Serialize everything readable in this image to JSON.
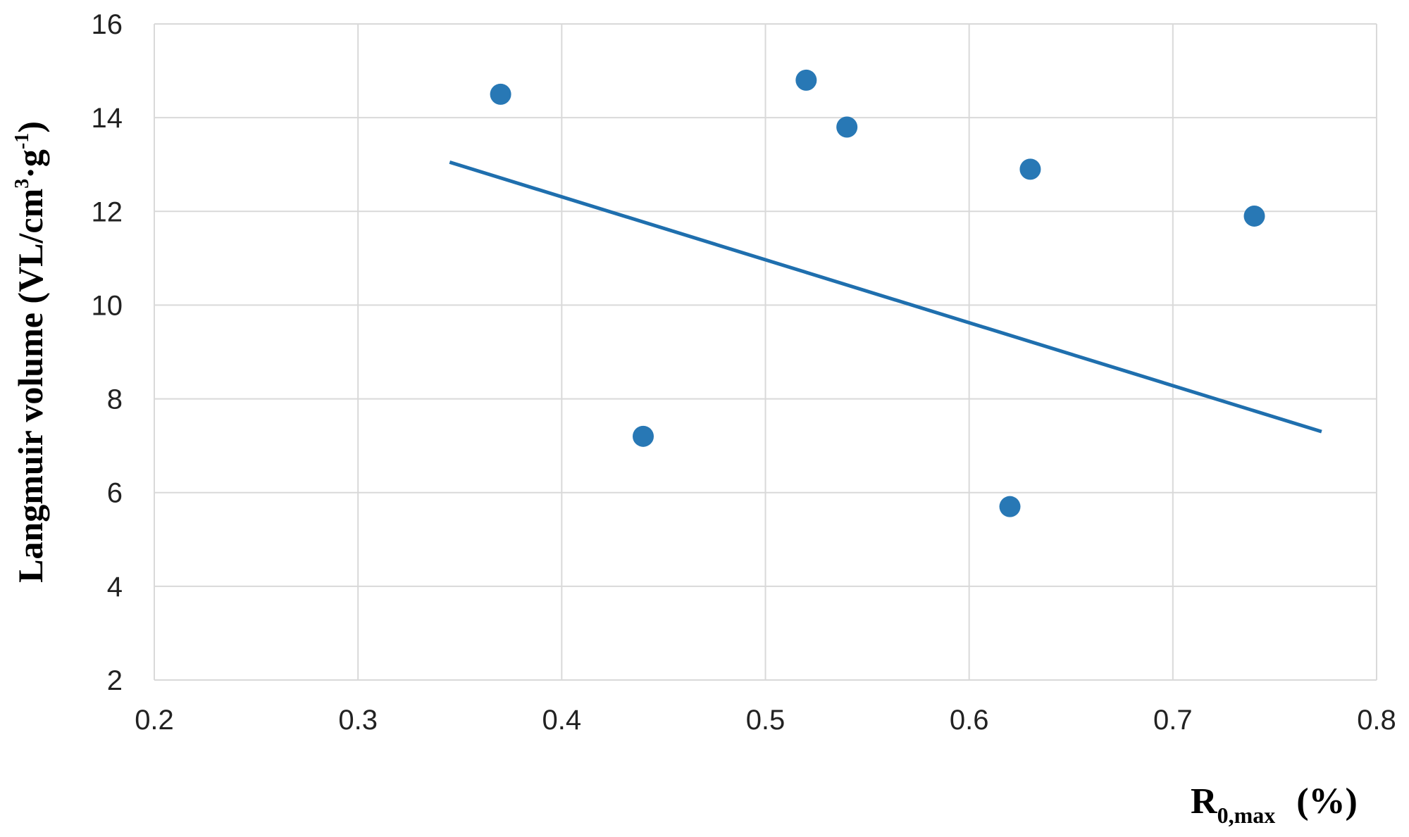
{
  "chart_data": {
    "type": "scatter",
    "title": "",
    "xlabel": "R",
    "xlabel_sub": "0,max",
    "xlabel_unit": "(%)",
    "ylabel": "Langmuir volume (VL/cm",
    "ylabel_sup1": "3",
    "ylabel_mid": "·g",
    "ylabel_sup2": "-1",
    "ylabel_end": ")",
    "xlim": [
      0.2,
      0.8
    ],
    "ylim": [
      2,
      16
    ],
    "xticks": [
      "0.2",
      "0.3",
      "0.4",
      "0.5",
      "0.6",
      "0.7",
      "0.8"
    ],
    "yticks": [
      "2",
      "4",
      "6",
      "8",
      "10",
      "12",
      "14",
      "16"
    ],
    "grid": true,
    "series": [
      {
        "points": [
          [
            0.37,
            14.5
          ],
          [
            0.44,
            7.2
          ],
          [
            0.52,
            14.8
          ],
          [
            0.54,
            13.8
          ],
          [
            0.62,
            5.7
          ],
          [
            0.63,
            12.9
          ],
          [
            0.74,
            11.9
          ]
        ]
      }
    ],
    "trendline": {
      "type": "linear",
      "from": [
        0.345,
        13.05
      ],
      "to": [
        0.773,
        7.3
      ]
    },
    "colors": {
      "marker": "#2878b5",
      "trendline": "#1f6fae",
      "grid": "#d9d9d9"
    }
  }
}
